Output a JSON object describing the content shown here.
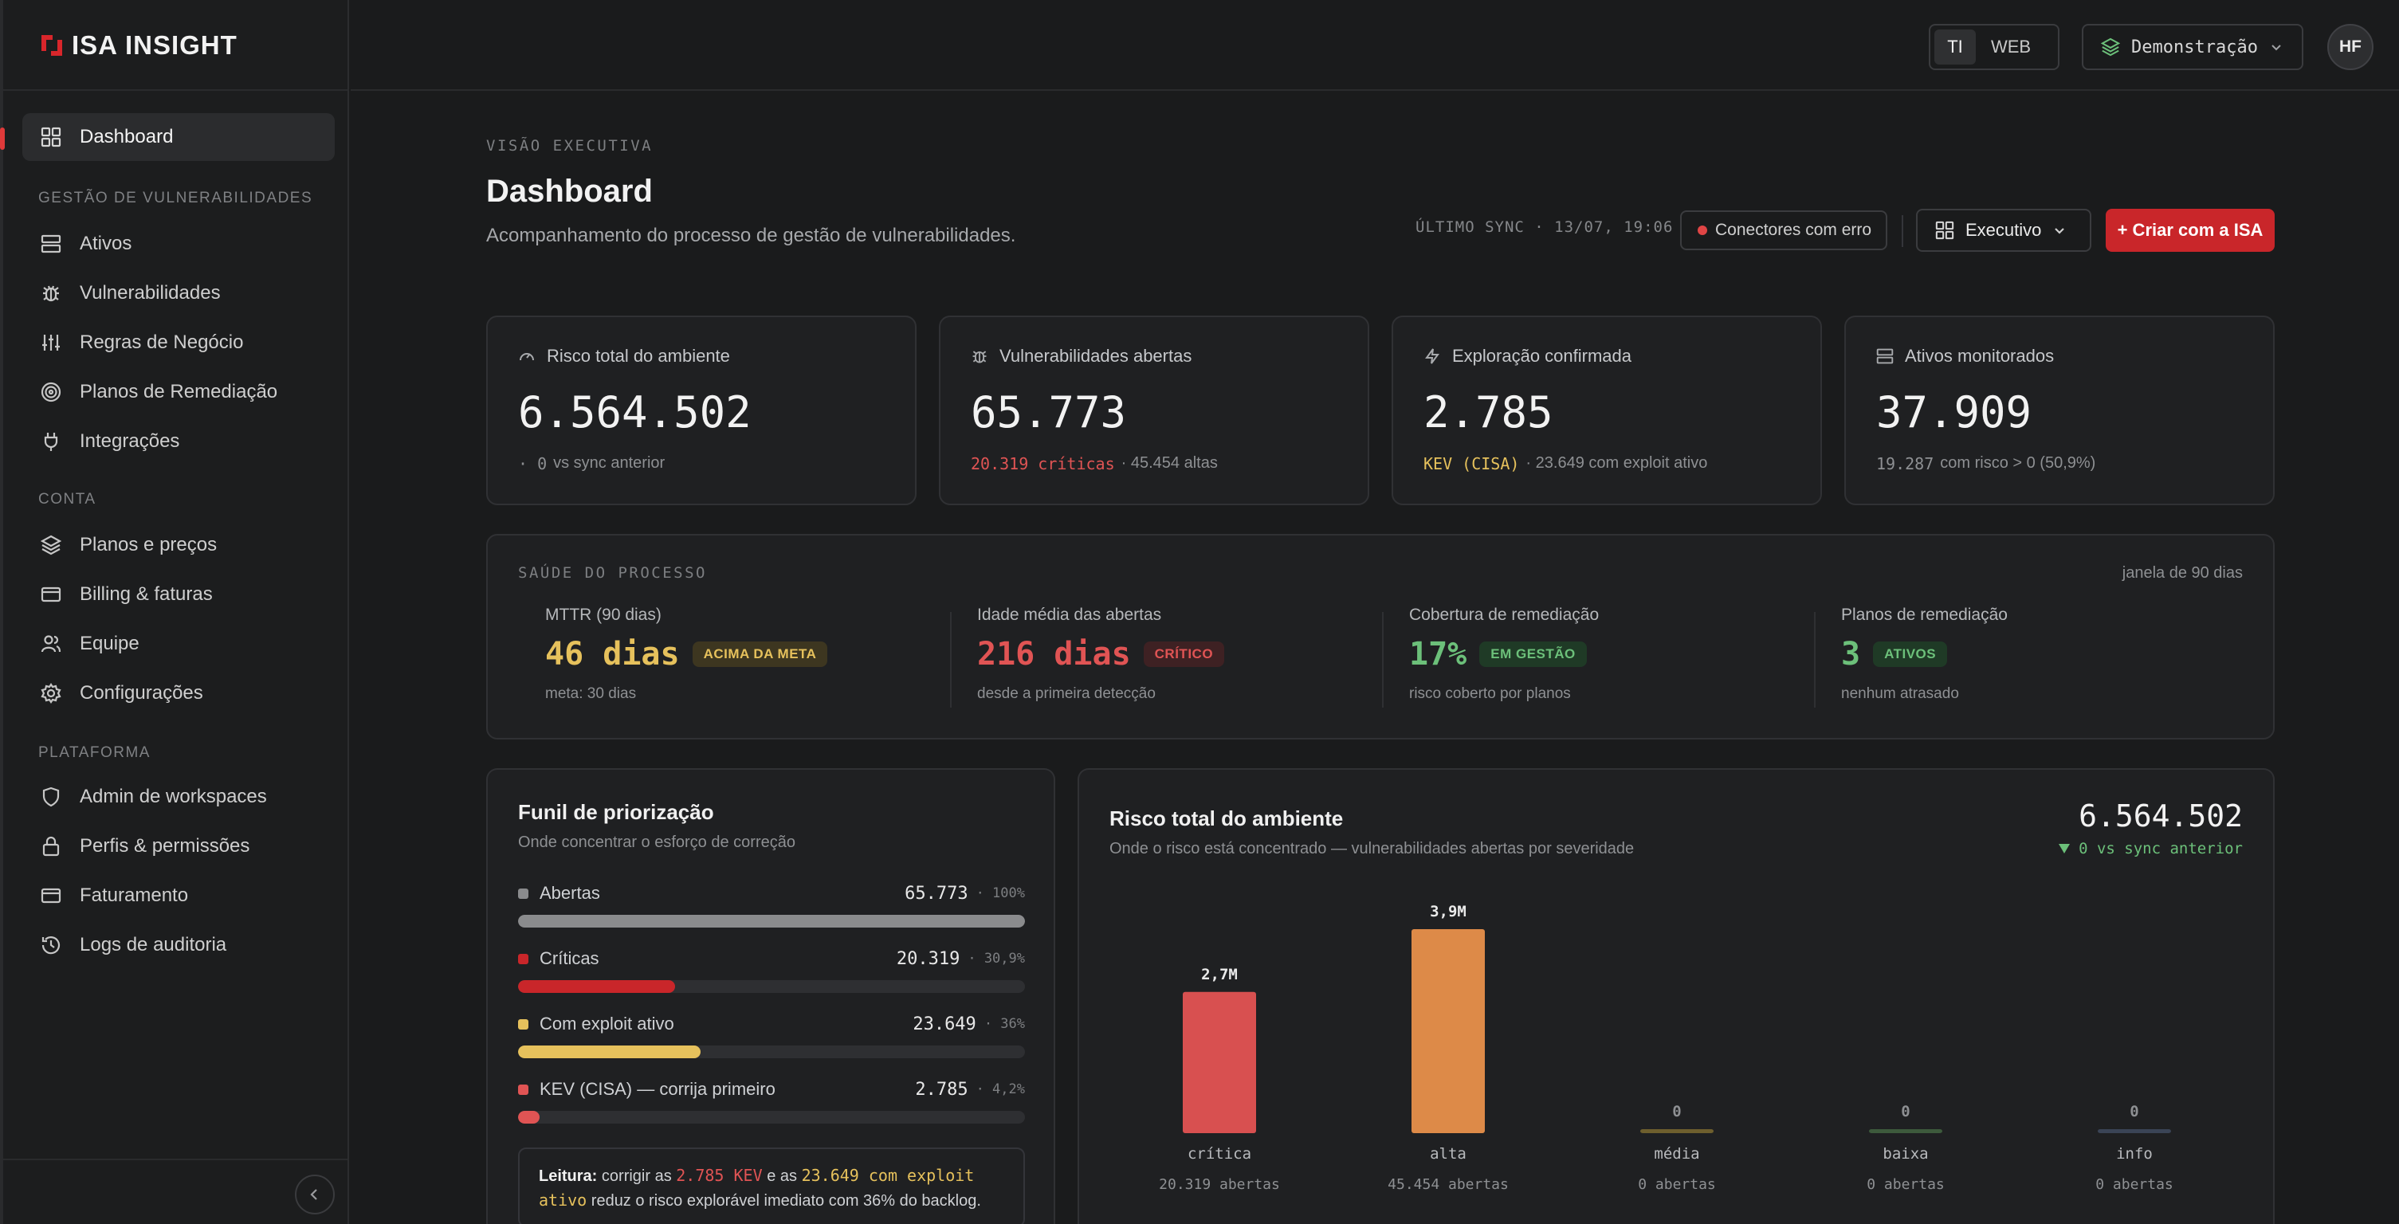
{
  "brand": {
    "name": "ISA INSIGHT"
  },
  "sidebar": {
    "dashboard": "Dashboard",
    "sections": [
      {
        "title": "GESTÃO DE VULNERABILIDADES",
        "items": [
          "Ativos",
          "Vulnerabilidades",
          "Regras de Negócio",
          "Planos de Remediação",
          "Integrações"
        ]
      },
      {
        "title": "CONTA",
        "items": [
          "Planos e preços",
          "Billing & faturas",
          "Equipe",
          "Configurações"
        ]
      },
      {
        "title": "PLATAFORMA",
        "items": [
          "Admin de workspaces",
          "Perfis & permissões",
          "Faturamento",
          "Logs de auditoria"
        ]
      }
    ]
  },
  "topbar": {
    "segment": [
      "TI",
      "WEB"
    ],
    "workspace": "Demonstração",
    "avatar": "HF"
  },
  "header": {
    "eyebrow": "VISÃO EXECUTIVA",
    "title": "Dashboard",
    "subtitle": "Acompanhamento do processo de gestão de vulnerabilidades.",
    "sync": "ÚLTIMO SYNC · 13/07, 19:06",
    "connectors": "Conectores com erro",
    "view": "Executivo",
    "cta": "+ Criar com a ISA"
  },
  "kpis": [
    {
      "label": "Risco total do ambiente",
      "value": "6.564.502",
      "sub_a": "· 0",
      "sub_b": "vs sync anterior"
    },
    {
      "label": "Vulnerabilidades abertas",
      "value": "65.773",
      "sub_a": "20.319 críticas",
      "sub_b": "· 45.454 altas"
    },
    {
      "label": "Exploração confirmada",
      "value": "2.785",
      "sub_a": "KEV (CISA)",
      "sub_b": "· 23.649 com exploit ativo"
    },
    {
      "label": "Ativos monitorados",
      "value": "37.909",
      "sub_a": "19.287",
      "sub_b": "com risco > 0 (50,9%)"
    }
  ],
  "health": {
    "title": "SAÚDE DO PROCESSO",
    "window": "janela de 90 dias",
    "items": [
      {
        "label": "MTTR (90 dias)",
        "value": "46 dias",
        "badge": "ACIMA DA META",
        "sub": "meta: 30 dias"
      },
      {
        "label": "Idade média das abertas",
        "value": "216 dias",
        "badge": "CRÍTICO",
        "sub": "desde a primeira detecção"
      },
      {
        "label": "Cobertura de remediação",
        "value": "17%",
        "badge": "EM GESTÃO",
        "sub": "risco coberto por planos"
      },
      {
        "label": "Planos de remediação",
        "value": "3",
        "badge": "ATIVOS",
        "sub": "nenhum atrasado"
      }
    ]
  },
  "funnel": {
    "title": "Funil de priorização",
    "subtitle": "Onde concentrar o esforço de correção",
    "rows": [
      {
        "label": "Abertas",
        "count": "65.773",
        "pct": "· 100%",
        "fraction": 1.0,
        "color": "#8a8b8d"
      },
      {
        "label": "Críticas",
        "count": "20.319",
        "pct": "· 30,9%",
        "fraction": 0.309,
        "color": "#c9262a"
      },
      {
        "label": "Com exploit ativo",
        "count": "23.649",
        "pct": "· 36%",
        "fraction": 0.36,
        "color": "#e6c15c"
      },
      {
        "label": "KEV (CISA) — corrija primeiro",
        "count": "2.785",
        "pct": "· 4,2%",
        "fraction": 0.042,
        "color": "#e05454"
      }
    ],
    "reading": {
      "lead": "Leitura:",
      "t1": "corrigir as",
      "h1": "2.785 KEV",
      "t2": "e as",
      "h2": "23.649 com exploit ativo",
      "t3": "reduz o risco explorável imediato com 36% do backlog."
    }
  },
  "risk": {
    "title": "Risco total do ambiente",
    "subtitle": "Onde o risco está concentrado — vulnerabilidades abertas por severidade",
    "total": "6.564.502",
    "delta": "0 vs sync anterior"
  },
  "chart_data": {
    "type": "bar",
    "categories": [
      "crítica",
      "alta",
      "média",
      "baixa",
      "info"
    ],
    "values": [
      2700000,
      3900000,
      0,
      0,
      0
    ],
    "value_labels": [
      "2,7M",
      "3,9M",
      "0",
      "0",
      "0"
    ],
    "sublabels": [
      "20.319 abertas",
      "45.454 abertas",
      "0 abertas",
      "0 abertas",
      "0 abertas"
    ],
    "colors": [
      "#d85050",
      "#dd8a48",
      "#6e5f2e",
      "#3d5a3c",
      "#3a4456"
    ],
    "ylim": [
      0,
      3900000
    ]
  }
}
